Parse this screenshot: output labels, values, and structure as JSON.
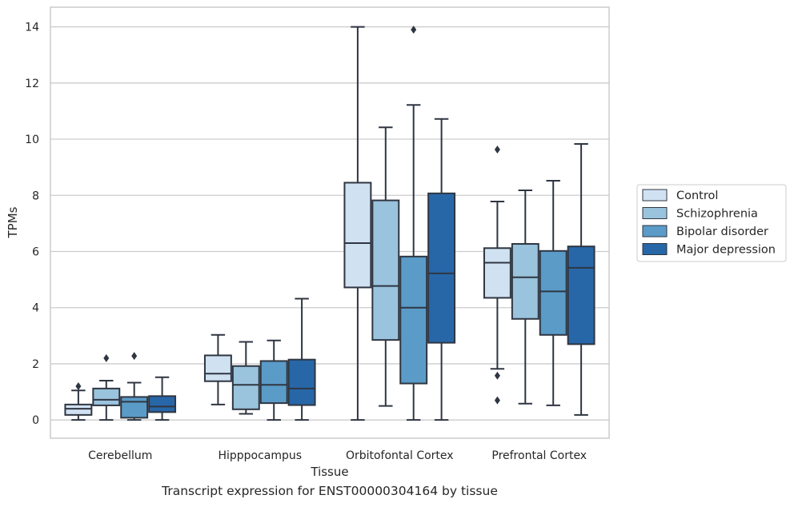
{
  "caption": "Transcript expression for ENST00000304164 by tissue",
  "chart_data": {
    "type": "box",
    "xlabel": "Tissue",
    "ylabel": "TPMs",
    "ylim": [
      -0.65,
      14.7
    ],
    "yticks": [
      0,
      2,
      4,
      6,
      8,
      10,
      12,
      14
    ],
    "grid": "horizontal",
    "legend_position": "right",
    "categories": [
      "Cerebellum",
      "Hipppocampus",
      "Orbitofontal Cortex",
      "Prefrontal Cortex"
    ],
    "series": [
      {
        "name": "Control",
        "color": "#d0e1f2",
        "boxes": [
          {
            "whislo": 0.0,
            "q1": 0.18,
            "med": 0.4,
            "q3": 0.55,
            "whishi": 1.05,
            "fliers": [
              1.2
            ]
          },
          {
            "whislo": 0.55,
            "q1": 1.38,
            "med": 1.65,
            "q3": 2.3,
            "whishi": 3.03,
            "fliers": []
          },
          {
            "whislo": 0.0,
            "q1": 4.72,
            "med": 6.3,
            "q3": 8.45,
            "whishi": 14.0,
            "fliers": []
          },
          {
            "whislo": 1.82,
            "q1": 4.35,
            "med": 5.6,
            "q3": 6.12,
            "whishi": 7.78,
            "fliers": [
              9.63,
              1.58,
              0.7
            ]
          }
        ]
      },
      {
        "name": "Schizophrenia",
        "color": "#9ac3dd",
        "boxes": [
          {
            "whislo": 0.0,
            "q1": 0.52,
            "med": 0.72,
            "q3": 1.12,
            "whishi": 1.4,
            "fliers": [
              2.2
            ]
          },
          {
            "whislo": 0.22,
            "q1": 0.38,
            "med": 1.25,
            "q3": 1.92,
            "whishi": 2.78,
            "fliers": []
          },
          {
            "whislo": 0.5,
            "q1": 2.85,
            "med": 4.77,
            "q3": 7.82,
            "whishi": 10.42,
            "fliers": []
          },
          {
            "whislo": 0.58,
            "q1": 3.6,
            "med": 5.08,
            "q3": 6.27,
            "whishi": 8.18,
            "fliers": []
          }
        ]
      },
      {
        "name": "Bipolar disorder",
        "color": "#5a9bc8",
        "boxes": [
          {
            "whislo": 0.0,
            "q1": 0.08,
            "med": 0.65,
            "q3": 0.82,
            "whishi": 1.33,
            "fliers": [
              2.28
            ]
          },
          {
            "whislo": 0.0,
            "q1": 0.6,
            "med": 1.25,
            "q3": 2.1,
            "whishi": 2.83,
            "fliers": []
          },
          {
            "whislo": 0.0,
            "q1": 1.3,
            "med": 4.0,
            "q3": 5.82,
            "whishi": 11.22,
            "fliers": [
              13.9
            ]
          },
          {
            "whislo": 0.52,
            "q1": 3.03,
            "med": 4.58,
            "q3": 6.02,
            "whishi": 8.52,
            "fliers": []
          }
        ]
      },
      {
        "name": "Major depression",
        "color": "#2767a8",
        "boxes": [
          {
            "whislo": 0.0,
            "q1": 0.28,
            "med": 0.48,
            "q3": 0.85,
            "whishi": 1.52,
            "fliers": []
          },
          {
            "whislo": 0.0,
            "q1": 0.53,
            "med": 1.12,
            "q3": 2.15,
            "whishi": 4.32,
            "fliers": []
          },
          {
            "whislo": 0.0,
            "q1": 2.75,
            "med": 5.22,
            "q3": 8.07,
            "whishi": 10.72,
            "fliers": []
          },
          {
            "whislo": 0.18,
            "q1": 2.7,
            "med": 5.42,
            "q3": 6.18,
            "whishi": 9.83,
            "fliers": []
          }
        ]
      }
    ]
  },
  "style": {
    "line_color": "#2f3641",
    "grid_color": "#cccccc",
    "frame_color": "#cccccc"
  }
}
